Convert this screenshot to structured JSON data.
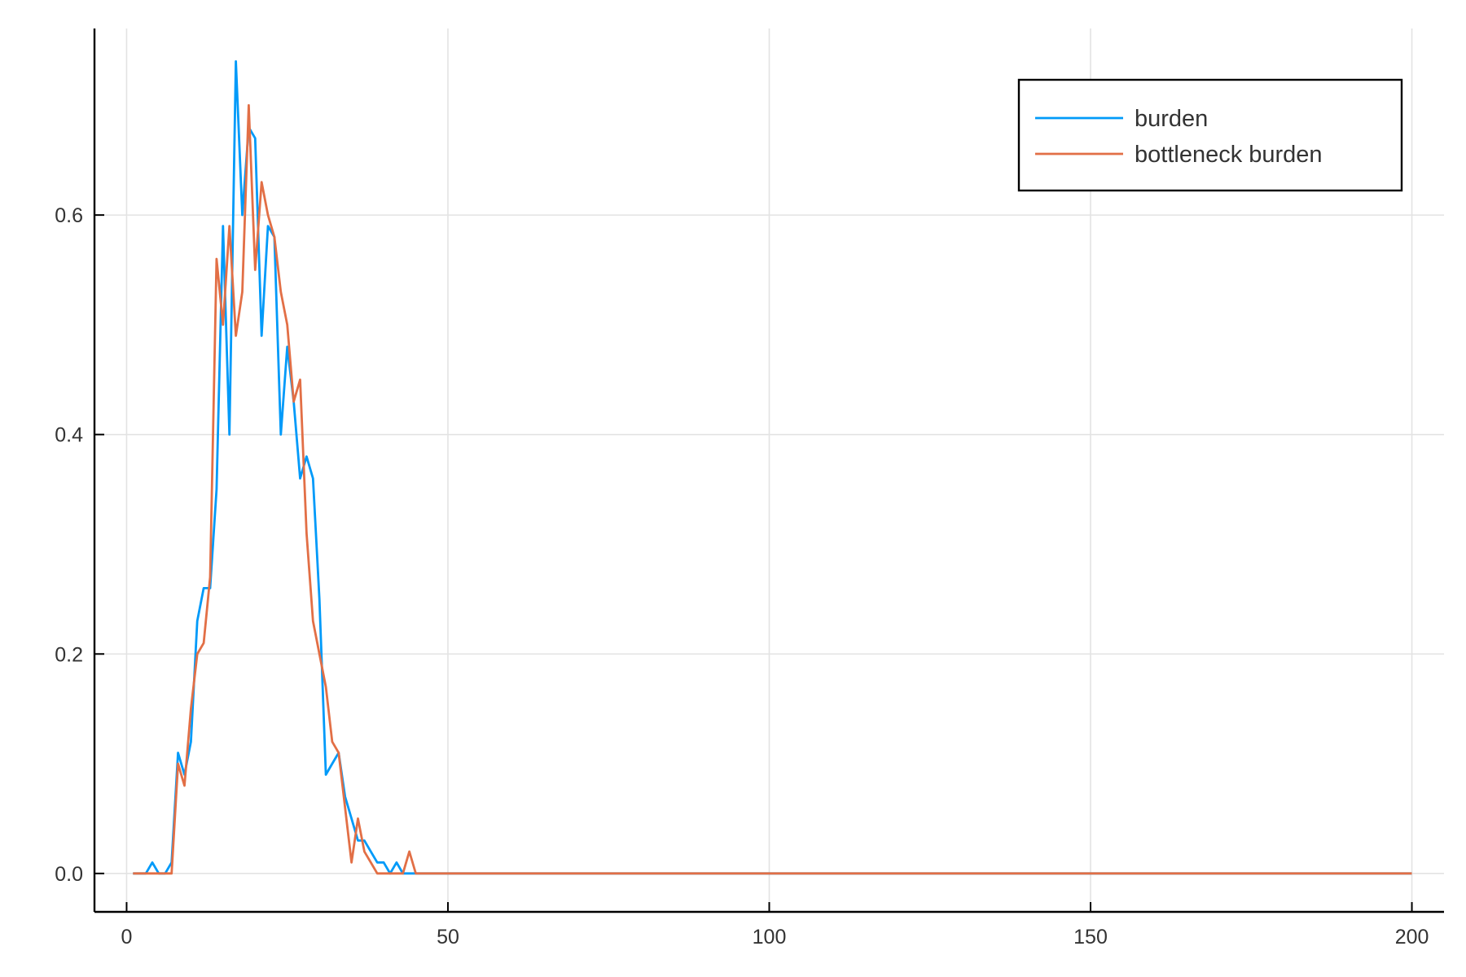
{
  "chart_data": {
    "type": "line",
    "title": "",
    "xlabel": "",
    "ylabel": "",
    "xlim": [
      -5,
      205
    ],
    "ylim": [
      -0.035,
      0.77
    ],
    "x_ticks": [
      0,
      50,
      100,
      150,
      200
    ],
    "y_ticks": [
      0.0,
      0.2,
      0.4,
      0.6
    ],
    "x_tick_labels": [
      "0",
      "50",
      "100",
      "150",
      "200"
    ],
    "y_tick_labels": [
      "0.0",
      "0.2",
      "0.4",
      "0.6"
    ],
    "grid": true,
    "legend_position": "top-right",
    "x": [
      1,
      2,
      3,
      4,
      5,
      6,
      7,
      8,
      9,
      10,
      11,
      12,
      13,
      14,
      15,
      16,
      17,
      18,
      19,
      20,
      21,
      22,
      23,
      24,
      25,
      26,
      27,
      28,
      29,
      30,
      31,
      32,
      33,
      34,
      35,
      36,
      37,
      38,
      39,
      40,
      41,
      42,
      43,
      44,
      45,
      50,
      100,
      150,
      200
    ],
    "series": [
      {
        "name": "burden",
        "color": "#009af9",
        "values": [
          0,
          0,
          0,
          0.01,
          0,
          0,
          0.01,
          0.11,
          0.09,
          0.12,
          0.23,
          0.26,
          0.26,
          0.35,
          0.59,
          0.4,
          0.74,
          0.6,
          0.68,
          0.67,
          0.49,
          0.59,
          0.58,
          0.4,
          0.48,
          0.43,
          0.36,
          0.38,
          0.36,
          0.25,
          0.09,
          0.1,
          0.11,
          0.07,
          0.05,
          0.03,
          0.03,
          0.02,
          0.01,
          0.01,
          0,
          0.01,
          0,
          0,
          0,
          0,
          0,
          0,
          0
        ]
      },
      {
        "name": "bottleneck burden",
        "color": "#e26f46",
        "values": [
          0,
          0,
          0,
          0,
          0,
          0,
          0,
          0.1,
          0.08,
          0.15,
          0.2,
          0.21,
          0.27,
          0.56,
          0.5,
          0.59,
          0.49,
          0.53,
          0.7,
          0.55,
          0.63,
          0.6,
          0.58,
          0.53,
          0.5,
          0.43,
          0.45,
          0.31,
          0.23,
          0.2,
          0.17,
          0.12,
          0.11,
          0.06,
          0.01,
          0.05,
          0.02,
          0.01,
          0,
          0,
          0,
          0,
          0,
          0.02,
          0,
          0,
          0,
          0,
          0
        ]
      }
    ]
  }
}
